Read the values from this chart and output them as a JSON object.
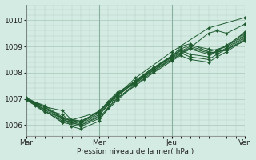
{
  "background_color": "#d4ebe3",
  "grid_color": "#b0ccbf",
  "line_color": "#1e5c30",
  "marker_color": "#1e5c30",
  "ylabel_ticks": [
    1006,
    1007,
    1008,
    1009,
    1010
  ],
  "ylim": [
    1005.6,
    1010.6
  ],
  "xlim": [
    0,
    3.0
  ],
  "xtick_labels": [
    "Mar",
    "Mer",
    "Jeu",
    "Ven"
  ],
  "xtick_positions": [
    0.0,
    1.0,
    2.0,
    3.0
  ],
  "xlabel": "Pression niveau de la mer( hPa )",
  "lines": [
    [
      0.0,
      1007.0,
      0.12,
      1006.85,
      0.25,
      1006.7,
      0.5,
      1006.55,
      0.62,
      1006.2,
      0.75,
      1006.15,
      1.0,
      1006.5,
      1.12,
      1006.9,
      1.25,
      1007.25,
      1.5,
      1007.65,
      1.62,
      1007.9,
      1.75,
      1008.15,
      2.0,
      1008.65,
      2.12,
      1008.85,
      2.25,
      1008.7,
      2.5,
      1008.6,
      2.62,
      1008.85,
      2.75,
      1009.05,
      3.0,
      1009.5
    ],
    [
      0.0,
      1007.0,
      0.12,
      1006.75,
      0.25,
      1006.5,
      0.5,
      1006.3,
      0.62,
      1005.95,
      0.75,
      1005.85,
      1.0,
      1006.15,
      1.12,
      1006.65,
      1.25,
      1007.05,
      1.5,
      1007.5,
      1.62,
      1007.75,
      1.75,
      1008.0,
      2.0,
      1008.45,
      2.12,
      1008.65,
      2.25,
      1008.5,
      2.5,
      1008.4,
      2.62,
      1008.6,
      2.75,
      1008.8,
      3.0,
      1009.25
    ],
    [
      0.0,
      1007.0,
      0.12,
      1006.8,
      0.25,
      1006.6,
      0.5,
      1006.4,
      0.62,
      1006.1,
      0.75,
      1006.0,
      1.0,
      1006.35,
      1.12,
      1006.8,
      1.25,
      1007.2,
      1.5,
      1007.6,
      1.62,
      1007.85,
      1.75,
      1008.1,
      2.0,
      1008.55,
      2.12,
      1008.75,
      2.25,
      1008.6,
      2.5,
      1008.5,
      2.62,
      1008.7,
      2.75,
      1008.9,
      3.0,
      1009.35
    ],
    [
      0.0,
      1007.0,
      0.25,
      1006.65,
      0.5,
      1006.2,
      0.75,
      1006.05,
      1.0,
      1006.4,
      1.25,
      1007.1,
      1.5,
      1007.7,
      1.75,
      1008.2,
      2.0,
      1008.6,
      2.12,
      1008.9,
      2.25,
      1009.05,
      2.5,
      1008.9,
      2.62,
      1008.85,
      2.75,
      1009.0,
      3.0,
      1009.45
    ],
    [
      0.0,
      1006.95,
      0.25,
      1006.55,
      0.5,
      1006.1,
      0.75,
      1005.95,
      1.0,
      1006.25,
      1.25,
      1006.95,
      1.5,
      1007.55,
      1.75,
      1008.05,
      2.0,
      1008.5,
      2.25,
      1008.95,
      2.5,
      1008.75,
      2.75,
      1008.85,
      3.0,
      1009.3
    ],
    [
      0.0,
      1007.0,
      0.25,
      1006.6,
      0.5,
      1006.15,
      0.75,
      1006.0,
      1.0,
      1006.3,
      1.25,
      1007.0,
      1.5,
      1007.6,
      1.75,
      1008.1,
      2.0,
      1008.5,
      2.25,
      1008.9,
      2.5,
      1008.7,
      2.75,
      1008.9,
      3.0,
      1009.2
    ],
    [
      0.0,
      1007.05,
      0.25,
      1006.7,
      0.5,
      1006.25,
      0.75,
      1006.1,
      1.0,
      1006.45,
      1.25,
      1007.1,
      1.5,
      1007.65,
      1.75,
      1008.15,
      2.0,
      1008.6,
      2.12,
      1009.0,
      2.25,
      1009.1,
      2.5,
      1008.8,
      2.62,
      1008.75,
      2.75,
      1008.95,
      3.0,
      1009.4
    ],
    [
      0.0,
      1007.0,
      0.25,
      1006.7,
      0.5,
      1006.25,
      0.75,
      1006.1,
      1.0,
      1006.55,
      1.25,
      1007.2,
      1.5,
      1007.7,
      1.75,
      1008.2,
      2.0,
      1008.65,
      2.25,
      1009.0,
      2.5,
      1008.8,
      2.75,
      1009.0,
      3.0,
      1009.55
    ],
    [
      0.0,
      1007.0,
      0.25,
      1006.75,
      0.5,
      1006.3,
      0.75,
      1006.15,
      1.0,
      1006.5,
      1.25,
      1007.15,
      1.5,
      1007.65,
      1.75,
      1008.15,
      2.0,
      1008.6,
      2.25,
      1008.95,
      2.5,
      1009.5,
      2.62,
      1009.6,
      2.75,
      1009.5,
      3.0,
      1009.85
    ],
    [
      0.0,
      1007.0,
      0.5,
      1006.1,
      1.0,
      1006.5,
      1.5,
      1007.8,
      2.0,
      1008.8,
      2.5,
      1009.7,
      3.0,
      1010.1
    ]
  ]
}
